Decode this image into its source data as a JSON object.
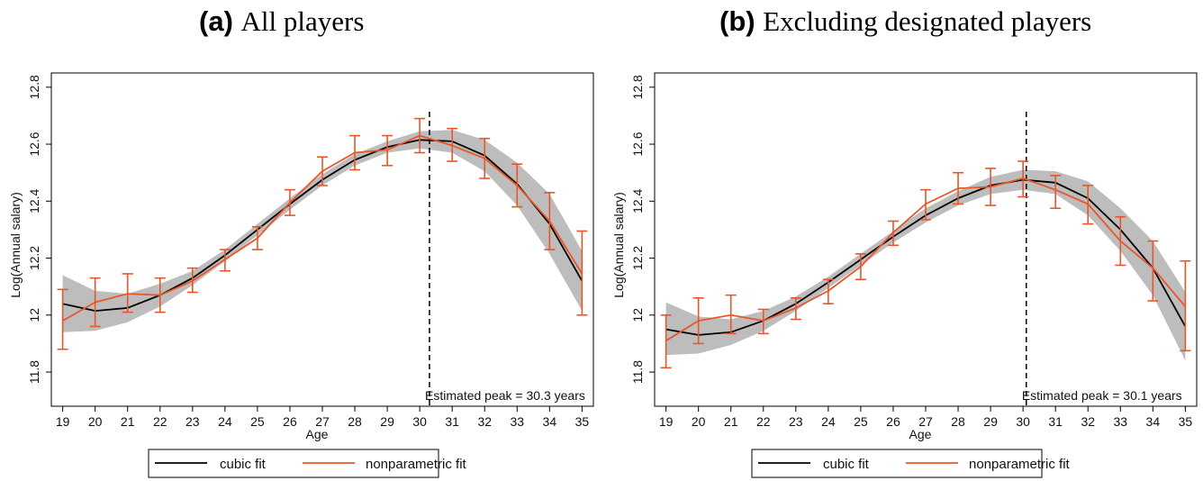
{
  "panels": [
    {
      "tag": "(a)",
      "title": "All players"
    },
    {
      "tag": "(b)",
      "title": "Excluding designated players"
    }
  ],
  "chart_data": [
    {
      "type": "line",
      "xlabel": "Age",
      "ylabel": "Log(Annual salary)",
      "xlim": [
        18.65,
        35.35
      ],
      "ylim": [
        11.68,
        12.85
      ],
      "xticks": [
        19,
        20,
        21,
        22,
        23,
        24,
        25,
        26,
        27,
        28,
        29,
        30,
        31,
        32,
        33,
        34,
        35
      ],
      "yticks": [
        "11.8",
        "12",
        "12.2",
        "12.4",
        "12.6",
        "12.8"
      ],
      "x": [
        19,
        20,
        21,
        22,
        23,
        24,
        25,
        26,
        27,
        28,
        29,
        30,
        31,
        32,
        33,
        34,
        35
      ],
      "series": [
        {
          "name": "cubic fit",
          "color": "#000000",
          "values": [
            12.04,
            12.015,
            12.025,
            12.07,
            12.13,
            12.21,
            12.3,
            12.39,
            12.475,
            12.545,
            12.59,
            12.615,
            12.61,
            12.56,
            12.46,
            12.32,
            12.12
          ],
          "ci_lower": [
            11.94,
            11.945,
            11.975,
            12.03,
            12.105,
            12.19,
            12.28,
            12.37,
            12.455,
            12.525,
            12.57,
            12.585,
            12.57,
            12.505,
            12.385,
            12.215,
            12.015
          ],
          "ci_upper": [
            12.14,
            12.085,
            12.075,
            12.11,
            12.155,
            12.23,
            12.32,
            12.41,
            12.495,
            12.565,
            12.61,
            12.645,
            12.65,
            12.615,
            12.535,
            12.425,
            12.225
          ]
        },
        {
          "name": "nonparametric fit",
          "color": "#e8562a",
          "values": [
            11.98,
            12.045,
            12.075,
            12.07,
            12.12,
            12.195,
            12.27,
            12.395,
            12.505,
            12.57,
            12.58,
            12.63,
            12.595,
            12.55,
            12.455,
            12.33,
            12.145
          ],
          "err_low": [
            11.88,
            11.96,
            12.01,
            12.01,
            12.08,
            12.155,
            12.23,
            12.35,
            12.455,
            12.51,
            12.525,
            12.57,
            12.54,
            12.48,
            12.38,
            12.23,
            12.0
          ],
          "err_high": [
            12.09,
            12.13,
            12.145,
            12.13,
            12.165,
            12.23,
            12.31,
            12.44,
            12.555,
            12.63,
            12.63,
            12.69,
            12.655,
            12.62,
            12.53,
            12.43,
            12.295
          ]
        }
      ],
      "peak": {
        "x": 30.3,
        "label": "Estimated peak = 30.3 years"
      },
      "legend": [
        "cubic fit",
        "nonparametric fit"
      ],
      "legend_position": "bottom",
      "grid": false
    },
    {
      "type": "line",
      "xlabel": "Age",
      "ylabel": "Log(Annual salary)",
      "xlim": [
        18.65,
        35.35
      ],
      "ylim": [
        11.68,
        12.85
      ],
      "xticks": [
        19,
        20,
        21,
        22,
        23,
        24,
        25,
        26,
        27,
        28,
        29,
        30,
        31,
        32,
        33,
        34,
        35
      ],
      "yticks": [
        "11.8",
        "12",
        "12.2",
        "12.4",
        "12.6",
        "12.8"
      ],
      "x": [
        19,
        20,
        21,
        22,
        23,
        24,
        25,
        26,
        27,
        28,
        29,
        30,
        31,
        32,
        33,
        34,
        35
      ],
      "series": [
        {
          "name": "cubic fit",
          "color": "#000000",
          "values": [
            11.95,
            11.93,
            11.94,
            11.98,
            12.04,
            12.115,
            12.195,
            12.275,
            12.35,
            12.41,
            12.455,
            12.475,
            12.465,
            12.41,
            12.3,
            12.165,
            11.96
          ],
          "ci_lower": [
            11.86,
            11.865,
            11.895,
            11.945,
            12.015,
            12.095,
            12.175,
            12.255,
            12.325,
            12.385,
            12.425,
            12.44,
            12.425,
            12.35,
            12.225,
            12.07,
            11.84
          ],
          "ci_upper": [
            12.045,
            11.995,
            11.985,
            12.015,
            12.065,
            12.135,
            12.215,
            12.295,
            12.375,
            12.435,
            12.485,
            12.51,
            12.505,
            12.47,
            12.375,
            12.26,
            12.08
          ]
        },
        {
          "name": "nonparametric fit",
          "color": "#e8562a",
          "values": [
            11.91,
            11.98,
            12.0,
            11.98,
            12.025,
            12.085,
            12.17,
            12.29,
            12.39,
            12.445,
            12.45,
            12.48,
            12.44,
            12.39,
            12.26,
            12.165,
            12.03
          ],
          "err_low": [
            11.815,
            11.9,
            11.935,
            11.935,
            11.985,
            12.04,
            12.125,
            12.245,
            12.335,
            12.39,
            12.385,
            12.415,
            12.375,
            12.32,
            12.175,
            12.05,
            11.875
          ],
          "err_high": [
            12.0,
            12.06,
            12.07,
            12.02,
            12.06,
            12.125,
            12.215,
            12.33,
            12.44,
            12.5,
            12.515,
            12.54,
            12.49,
            12.455,
            12.345,
            12.26,
            12.19
          ]
        }
      ],
      "peak": {
        "x": 30.1,
        "label": "Estimated peak = 30.1 years"
      },
      "legend": [
        "cubic fit",
        "nonparametric fit"
      ],
      "legend_position": "bottom",
      "grid": false
    }
  ]
}
